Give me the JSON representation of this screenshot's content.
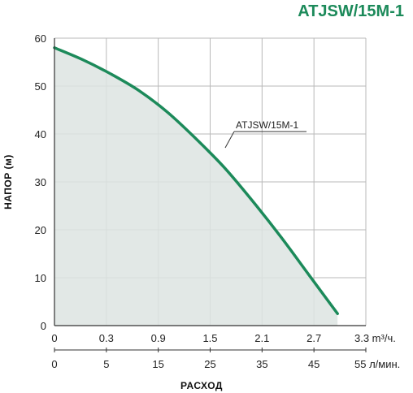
{
  "chart_data": {
    "type": "line",
    "title": "ATJSW/15M-1",
    "ylabel": "НАПОР (м)",
    "xlabel": "РАСХОД",
    "ylim": [
      0,
      60
    ],
    "y_ticks": [
      "0",
      "10",
      "20",
      "30",
      "40",
      "50",
      "60"
    ],
    "x_ticks_m3h": [
      "0",
      "0.3",
      "0.9",
      "1.5",
      "2.1",
      "2.7",
      "3.3"
    ],
    "x_unit_m3h": "m³/ч.",
    "x_ticks_lmin": [
      "0",
      "5",
      "15",
      "25",
      "35",
      "45",
      "55"
    ],
    "x_unit_lmin": "л/мин.",
    "grid": true,
    "series": [
      {
        "name": "ATJSW/15M-1",
        "x_lmin": [
          0,
          5,
          10,
          15,
          20,
          25,
          30,
          35,
          40,
          45,
          50
        ],
        "y": [
          58,
          55.5,
          52.5,
          49,
          44.5,
          39,
          33,
          26,
          18.5,
          10.5,
          2.5
        ]
      }
    ],
    "colors": {
      "line": "#1c8a5a",
      "fill": "#dde4e2",
      "title": "#1c8a5a",
      "grid": "#b9b9b9"
    }
  }
}
